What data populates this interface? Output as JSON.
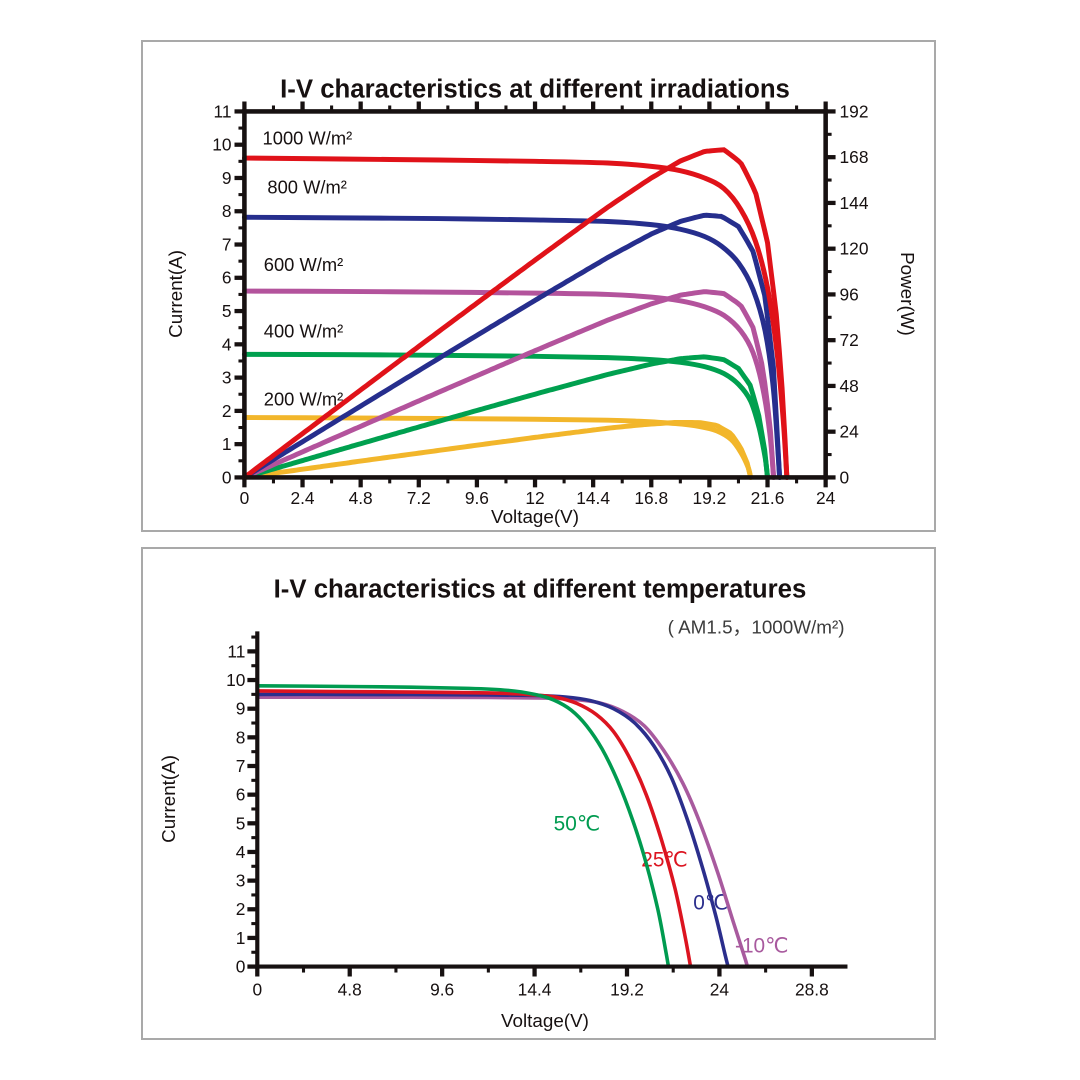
{
  "page": {
    "background": "#ffffff",
    "panel_border_color": "#a9a9a9",
    "ink_color": "#171111"
  },
  "chart_data": [
    {
      "type": "line",
      "title": "I-V characteristics at different irradiations",
      "xlabel": "Voltage(V)",
      "ylabel_left": "Current(A)",
      "ylabel_right": "Power(W)",
      "xlim": [
        0,
        24
      ],
      "ylim_left": [
        0,
        11
      ],
      "ylim_right": [
        0,
        192
      ],
      "grid": false,
      "frame": "box",
      "legend_position": "inline-labels",
      "x_ticks": [
        0,
        2.4,
        4.8,
        7.2,
        9.6,
        12,
        14.4,
        16.8,
        19.2,
        21.6,
        24
      ],
      "x_tick_labels": [
        "0",
        "2.4",
        "4.8",
        "7.2",
        "9.6",
        "12",
        "14.4",
        "16.8",
        "19.2",
        "21.6",
        "24"
      ],
      "y_left_ticks": [
        0,
        1,
        2,
        3,
        4,
        5,
        6,
        7,
        8,
        9,
        10,
        11
      ],
      "y_left_tick_labels": [
        "0",
        "1",
        "2",
        "3",
        "4",
        "5",
        "6",
        "7",
        "8",
        "9",
        "10",
        "11"
      ],
      "y_right_ticks": [
        0,
        24,
        48,
        72,
        96,
        120,
        144,
        168,
        192
      ],
      "y_right_tick_labels": [
        "0",
        "24",
        "48",
        "72",
        "96",
        "120",
        "144",
        "168",
        "192"
      ],
      "power_scale_note": "power curves P=V*I plotted against right axis",
      "series": [
        {
          "name": "200 W/m²",
          "color": "#f2b62b",
          "isc_A": 1.8,
          "voc_V": 20.9,
          "has_power_curve": true,
          "iv_points": [
            [
              0,
              1.8
            ],
            [
              4,
              1.79
            ],
            [
              8,
              1.77
            ],
            [
              12,
              1.75
            ],
            [
              15,
              1.72
            ],
            [
              16.5,
              1.68
            ],
            [
              17.8,
              1.62
            ],
            [
              18.8,
              1.53
            ],
            [
              19.5,
              1.4
            ],
            [
              20.1,
              1.14
            ],
            [
              20.5,
              0.75
            ],
            [
              20.8,
              0.3
            ],
            [
              20.9,
              0
            ]
          ]
        },
        {
          "name": "400 W/m²",
          "color": "#00a04f",
          "isc_A": 3.7,
          "voc_V": 21.6,
          "has_power_curve": true,
          "iv_points": [
            [
              0,
              3.7
            ],
            [
              4,
              3.69
            ],
            [
              8,
              3.67
            ],
            [
              12,
              3.64
            ],
            [
              15,
              3.6
            ],
            [
              16.8,
              3.54
            ],
            [
              18,
              3.46
            ],
            [
              19,
              3.33
            ],
            [
              19.8,
              3.12
            ],
            [
              20.4,
              2.8
            ],
            [
              20.9,
              2.3
            ],
            [
              21.25,
              1.5
            ],
            [
              21.5,
              0.6
            ],
            [
              21.6,
              0
            ]
          ]
        },
        {
          "name": "600 W/m²",
          "color": "#b3539c",
          "isc_A": 5.6,
          "voc_V": 21.85,
          "has_power_curve": true,
          "iv_points": [
            [
              0,
              5.6
            ],
            [
              4,
              5.59
            ],
            [
              8,
              5.57
            ],
            [
              12,
              5.54
            ],
            [
              15,
              5.5
            ],
            [
              16.8,
              5.42
            ],
            [
              18,
              5.31
            ],
            [
              19,
              5.13
            ],
            [
              19.8,
              4.87
            ],
            [
              20.5,
              4.4
            ],
            [
              21,
              3.75
            ],
            [
              21.4,
              2.7
            ],
            [
              21.7,
              1.3
            ],
            [
              21.85,
              0
            ]
          ]
        },
        {
          "name": "800 W/m²",
          "color": "#262e8d",
          "isc_A": 7.8,
          "voc_V": 22.1,
          "has_power_curve": true,
          "iv_points": [
            [
              0,
              7.82
            ],
            [
              4,
              7.8
            ],
            [
              8,
              7.78
            ],
            [
              12,
              7.74
            ],
            [
              15,
              7.69
            ],
            [
              16.8,
              7.6
            ],
            [
              18,
              7.46
            ],
            [
              19,
              7.24
            ],
            [
              19.7,
              6.95
            ],
            [
              20.4,
              6.45
            ],
            [
              21,
              5.65
            ],
            [
              21.5,
              4.4
            ],
            [
              21.85,
              2.6
            ],
            [
              22.1,
              0
            ]
          ]
        },
        {
          "name": "1000 W/m²",
          "color": "#e01219",
          "isc_A": 9.6,
          "voc_V": 22.4,
          "has_power_curve": true,
          "iv_points": [
            [
              0,
              9.6
            ],
            [
              4,
              9.57
            ],
            [
              8,
              9.54
            ],
            [
              12,
              9.5
            ],
            [
              15,
              9.45
            ],
            [
              16.8,
              9.35
            ],
            [
              18,
              9.22
            ],
            [
              19,
              9.0
            ],
            [
              19.8,
              8.68
            ],
            [
              20.5,
              8.05
            ],
            [
              21.1,
              7.1
            ],
            [
              21.6,
              5.7
            ],
            [
              22,
              3.7
            ],
            [
              22.25,
              1.7
            ],
            [
              22.4,
              0
            ]
          ]
        }
      ],
      "annotations": [
        {
          "text": "1000 W/m²",
          "v": 0.75,
          "i": 10.2,
          "anchor": "start",
          "color": "#171111"
        },
        {
          "text": "800 W/m²",
          "v": 0.95,
          "i": 8.72,
          "anchor": "start",
          "color": "#171111"
        },
        {
          "text": "600 W/m²",
          "v": 0.8,
          "i": 6.4,
          "anchor": "start",
          "color": "#171111"
        },
        {
          "text": "400 W/m²",
          "v": 0.8,
          "i": 4.4,
          "anchor": "start",
          "color": "#171111"
        },
        {
          "text": "200 W/m²",
          "v": 0.8,
          "i": 2.35,
          "anchor": "start",
          "color": "#171111"
        }
      ]
    },
    {
      "type": "line",
      "title": "I-V characteristics at different temperatures",
      "subtitle": "( AM1.5，1000W/m²)",
      "xlabel": "Voltage(V)",
      "ylabel_left": "Current(A)",
      "xlim": [
        0,
        30.65
      ],
      "ylim_left": [
        0,
        11.7
      ],
      "grid": false,
      "frame": "open",
      "legend_position": "inline-labels",
      "x_ticks": [
        0,
        4.8,
        9.6,
        14.4,
        19.2,
        24,
        28.8
      ],
      "x_tick_labels": [
        "0",
        "4.8",
        "9.6",
        "14.4",
        "19.2",
        "24",
        "28.8"
      ],
      "y_left_ticks": [
        0,
        1,
        2,
        3,
        4,
        5,
        6,
        7,
        8,
        9,
        10,
        11
      ],
      "y_left_tick_labels": [
        "0",
        "1",
        "2",
        "3",
        "4",
        "5",
        "6",
        "7",
        "8",
        "9",
        "10",
        "11"
      ],
      "series": [
        {
          "name": "-10℃",
          "color": "#a85a9e",
          "isc_A": 9.4,
          "voc_V": 25.45,
          "has_power_curve": false,
          "iv_points": [
            [
              0,
              9.4
            ],
            [
              4,
              9.4
            ],
            [
              8,
              9.4
            ],
            [
              12,
              9.39
            ],
            [
              15,
              9.37
            ],
            [
              16.5,
              9.32
            ],
            [
              17.8,
              9.2
            ],
            [
              19,
              8.9
            ],
            [
              20.1,
              8.4
            ],
            [
              21.1,
              7.55
            ],
            [
              22.1,
              6.4
            ],
            [
              23,
              5.0
            ],
            [
              23.9,
              3.3
            ],
            [
              24.7,
              1.6
            ],
            [
              25.3,
              0.35
            ],
            [
              25.45,
              0
            ]
          ]
        },
        {
          "name": "0℃",
          "color": "#2b2e8c",
          "isc_A": 9.5,
          "voc_V": 24.45,
          "has_power_curve": false,
          "iv_points": [
            [
              0,
              9.5
            ],
            [
              4,
              9.5
            ],
            [
              8,
              9.49
            ],
            [
              12,
              9.48
            ],
            [
              14.5,
              9.46
            ],
            [
              16,
              9.41
            ],
            [
              17.3,
              9.28
            ],
            [
              18.5,
              9.0
            ],
            [
              19.6,
              8.5
            ],
            [
              20.6,
              7.7
            ],
            [
              21.5,
              6.6
            ],
            [
              22.3,
              5.2
            ],
            [
              23.1,
              3.5
            ],
            [
              23.8,
              1.8
            ],
            [
              24.3,
              0.4
            ],
            [
              24.45,
              0
            ]
          ]
        },
        {
          "name": "25℃",
          "color": "#dc1420",
          "isc_A": 9.6,
          "voc_V": 22.5,
          "has_power_curve": false,
          "iv_points": [
            [
              0,
              9.62
            ],
            [
              4,
              9.6
            ],
            [
              8,
              9.58
            ],
            [
              12,
              9.55
            ],
            [
              14,
              9.5
            ],
            [
              15.5,
              9.4
            ],
            [
              16.6,
              9.18
            ],
            [
              17.6,
              8.8
            ],
            [
              18.5,
              8.2
            ],
            [
              19.4,
              7.2
            ],
            [
              20.2,
              6.0
            ],
            [
              21,
              4.4
            ],
            [
              21.7,
              2.7
            ],
            [
              22.2,
              1.1
            ],
            [
              22.5,
              0
            ]
          ]
        },
        {
          "name": "50℃",
          "color": "#009b50",
          "isc_A": 9.8,
          "voc_V": 21.35,
          "has_power_curve": false,
          "iv_points": [
            [
              0,
              9.8
            ],
            [
              4,
              9.78
            ],
            [
              8,
              9.75
            ],
            [
              11,
              9.71
            ],
            [
              13,
              9.64
            ],
            [
              14.4,
              9.5
            ],
            [
              15.4,
              9.3
            ],
            [
              16.3,
              8.95
            ],
            [
              17.1,
              8.4
            ],
            [
              17.9,
              7.6
            ],
            [
              18.7,
              6.5
            ],
            [
              19.5,
              5.1
            ],
            [
              20.2,
              3.6
            ],
            [
              20.8,
              2.0
            ],
            [
              21.2,
              0.6
            ],
            [
              21.35,
              0
            ]
          ]
        }
      ],
      "annotations": [
        {
          "text": "50℃",
          "v": 16.6,
          "i": 5.0,
          "anchor": "middle",
          "color": "#009b50"
        },
        {
          "text": "25℃",
          "v": 21.15,
          "i": 3.75,
          "anchor": "middle",
          "color": "#dc1420"
        },
        {
          "text": "0℃",
          "v": 23.55,
          "i": 2.25,
          "anchor": "middle",
          "color": "#2b2e8c"
        },
        {
          "text": "-10℃",
          "v": 26.2,
          "i": 0.75,
          "anchor": "middle",
          "color": "#a85a9e"
        }
      ]
    }
  ]
}
